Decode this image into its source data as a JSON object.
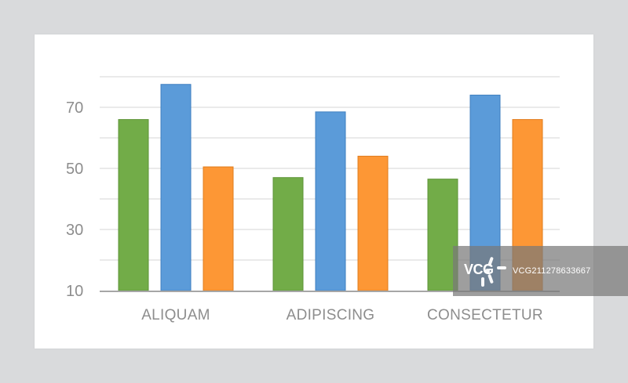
{
  "chart_data": {
    "type": "bar",
    "categories": [
      "ALIQUAM",
      "ADIPISCING",
      "CONSECTETUR"
    ],
    "series": [
      {
        "values": [
          66,
          47,
          46.5
        ],
        "color": "#72ac48"
      },
      {
        "values": [
          77.5,
          68.5,
          74
        ],
        "color": "#5b9bd9"
      },
      {
        "values": [
          50.5,
          54,
          66
        ],
        "color": "#fd9735"
      }
    ],
    "yticks": [
      10,
      30,
      50,
      70
    ],
    "ylim": [
      10,
      80
    ],
    "grid": true,
    "title": "",
    "xlabel": "",
    "ylabel": ""
  },
  "watermark": {
    "logo_text": "VCG",
    "id_text": "VCG211278633667"
  }
}
